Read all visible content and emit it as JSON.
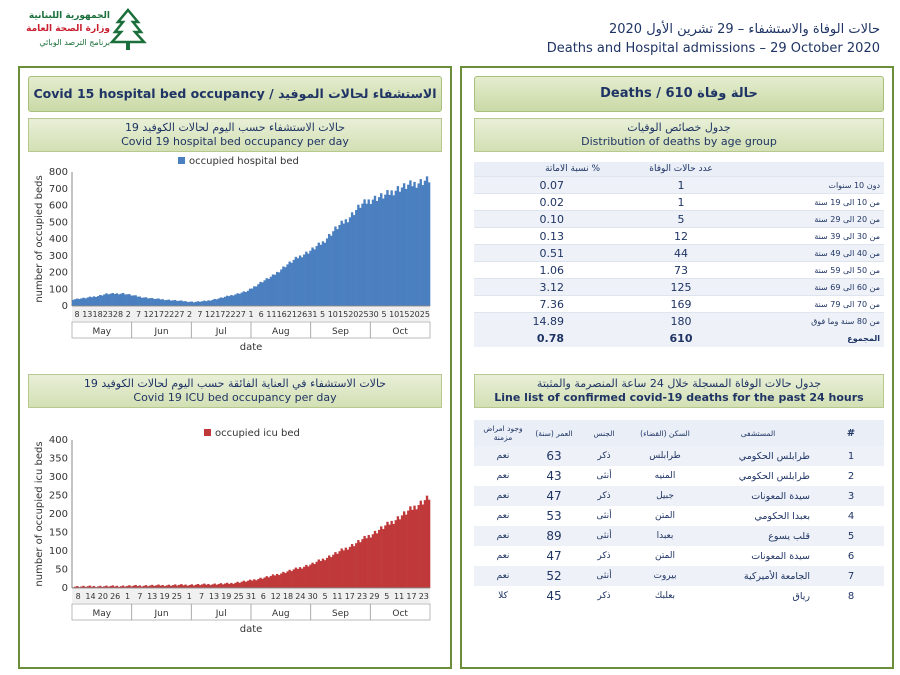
{
  "logo": {
    "line1": "الجمهورية اللبنانية",
    "line2": "وزارة الصحة العامة",
    "line3": "برنامج الترصد الوبائي"
  },
  "header": {
    "title_ar": "حالات الوفاة والاستشفاء – 29 تشرين الأول 2020",
    "title_en": "Deaths and Hospital admissions – 29 October 2020"
  },
  "left": {
    "banner": "Covid 15 hospital bed occupancy / الاستشفاء لحالات الموفيد 19",
    "hosp_sub_ar": "حالات الاستشفاء حسب اليوم لحالات الكوفيد 19",
    "hosp_sub_en": "Covid 19 hospital bed occupancy per day",
    "icu_sub_ar": "حالات الاستشفاء في العناية الفائقة حسب اليوم لحالات الكوفيد 19",
    "icu_sub_en": "Covid 19 ICU bed occupancy per day"
  },
  "right": {
    "banner": "Deaths  /  610 حالة وفاة",
    "dist_sub_ar": "جدول خصائص الوفيات",
    "dist_sub_en": "Distribution of deaths by age group",
    "dist_headers": {
      "pct": "نسبة الاماتة %",
      "deaths": "عدد حالات الوفاة"
    },
    "age_rows": [
      {
        "age": "دون 10 سنوات",
        "deaths": "1",
        "pct": "0.07"
      },
      {
        "age": "من 10 الى 19 سنة",
        "deaths": "1",
        "pct": "0.02"
      },
      {
        "age": "من 20 الى 29 سنة",
        "deaths": "5",
        "pct": "0.10"
      },
      {
        "age": "من 30 الى 39 سنة",
        "deaths": "12",
        "pct": "0.13"
      },
      {
        "age": "من 40 الى 49 سنة",
        "deaths": "44",
        "pct": "0.51"
      },
      {
        "age": "من 50 الى 59 سنة",
        "deaths": "73",
        "pct": "1.06"
      },
      {
        "age": "من 60 الى 69 سنة",
        "deaths": "125",
        "pct": "3.12"
      },
      {
        "age": "من 70 الى 79 سنة",
        "deaths": "169",
        "pct": "7.36"
      },
      {
        "age": "من 80 سنة وما فوق",
        "deaths": "180",
        "pct": "14.89"
      }
    ],
    "total": {
      "label": "المجموع",
      "deaths": "610",
      "pct": "0.78"
    },
    "line_sub_ar": "جدول حالات الوفاة المسجلة خلال 24 ساعة المنصرمة والمثبتة",
    "line_sub_en": "Line list of confirmed covid-19 deaths for the past 24 hours",
    "line_headers": {
      "num": "#",
      "hospital": "المستشفى",
      "residence": "السكن (القضاء)",
      "sex": "الجنس",
      "age": "العمر (سنة)",
      "chronic": "وجود امراض مزمنة"
    },
    "line_rows": [
      {
        "num": "1",
        "hospital": "طرابلس الحكومي",
        "residence": "طرابلس",
        "sex": "ذكر",
        "age": "63",
        "chronic": "نعم"
      },
      {
        "num": "2",
        "hospital": "طرابلس الحكومي",
        "residence": "المنيه",
        "sex": "أنثى",
        "age": "43",
        "chronic": "نعم"
      },
      {
        "num": "3",
        "hospital": "سيدة المعونات",
        "residence": "جبيل",
        "sex": "ذكر",
        "age": "47",
        "chronic": "نعم"
      },
      {
        "num": "4",
        "hospital": "بعبدا الحكومي",
        "residence": "المتن",
        "sex": "أنثى",
        "age": "53",
        "chronic": "نعم"
      },
      {
        "num": "5",
        "hospital": "قلب يسوع",
        "residence": "بعبدا",
        "sex": "أنثى",
        "age": "89",
        "chronic": "نعم"
      },
      {
        "num": "6",
        "hospital": "سيدة المعونات",
        "residence": "المتن",
        "sex": "ذكر",
        "age": "47",
        "chronic": "نعم"
      },
      {
        "num": "7",
        "hospital": "الجامعة الأميركية",
        "residence": "بيروت",
        "sex": "أنثى",
        "age": "52",
        "chronic": "نعم"
      },
      {
        "num": "8",
        "hospital": "رياق",
        "residence": "بعلبك",
        "sex": "ذكر",
        "age": "45",
        "chronic": "كلا"
      }
    ]
  },
  "chart_data": [
    {
      "type": "bar",
      "legend": "occupied hospital bed",
      "ylabel": "number of occupied beds",
      "xlabel": "date",
      "ylim": [
        0,
        800
      ],
      "yticks": [
        0,
        100,
        200,
        300,
        400,
        500,
        600,
        700,
        800
      ],
      "color": "#4a7fc0",
      "day_ticks": [
        "8",
        "13",
        "18",
        "23",
        "28",
        "2",
        "7",
        "12",
        "17",
        "22",
        "27",
        "2",
        "7",
        "12",
        "17",
        "22",
        "27",
        "1",
        "6",
        "11",
        "16",
        "21",
        "26",
        "31",
        "5",
        "10",
        "15",
        "20",
        "25",
        "30",
        "5",
        "10",
        "15",
        "20",
        "25"
      ],
      "months": [
        "May",
        "Jun",
        "Jul",
        "Aug",
        "Sep",
        "Oct"
      ],
      "start": "2020-05-08",
      "keyframes": [
        [
          0,
          40
        ],
        [
          6,
          48
        ],
        [
          12,
          60
        ],
        [
          16,
          72
        ],
        [
          24,
          75
        ],
        [
          28,
          65
        ],
        [
          32,
          55
        ],
        [
          38,
          45
        ],
        [
          46,
          36
        ],
        [
          52,
          30
        ],
        [
          58,
          24
        ],
        [
          64,
          30
        ],
        [
          70,
          45
        ],
        [
          78,
          70
        ],
        [
          84,
          90
        ],
        [
          90,
          140
        ],
        [
          96,
          180
        ],
        [
          102,
          240
        ],
        [
          108,
          290
        ],
        [
          114,
          330
        ],
        [
          120,
          380
        ],
        [
          126,
          460
        ],
        [
          132,
          520
        ],
        [
          138,
          600
        ],
        [
          144,
          640
        ],
        [
          150,
          660
        ],
        [
          156,
          700
        ],
        [
          164,
          730
        ],
        [
          171,
          755
        ]
      ]
    },
    {
      "type": "bar",
      "legend": "occupied icu bed",
      "ylabel": "number of occupied icu beds",
      "xlabel": "date",
      "ylim": [
        0,
        400
      ],
      "yticks": [
        0,
        50,
        100,
        150,
        200,
        250,
        300,
        350,
        400
      ],
      "color": "#c0393a",
      "day_ticks": [
        "8",
        "14",
        "20",
        "26",
        "1",
        "7",
        "13",
        "19",
        "25",
        "1",
        "7",
        "13",
        "19",
        "25",
        "31",
        "6",
        "12",
        "18",
        "24",
        "30",
        "5",
        "11",
        "17",
        "23",
        "29",
        "5",
        "11",
        "17",
        "23"
      ],
      "months": [
        "May",
        "Jun",
        "Jul",
        "Aug",
        "Sep",
        "Oct"
      ],
      "start": "2020-05-08",
      "keyframes": [
        [
          0,
          4
        ],
        [
          20,
          5
        ],
        [
          40,
          7
        ],
        [
          60,
          9
        ],
        [
          75,
          12
        ],
        [
          85,
          20
        ],
        [
          95,
          32
        ],
        [
          105,
          48
        ],
        [
          115,
          65
        ],
        [
          125,
          90
        ],
        [
          135,
          118
        ],
        [
          145,
          150
        ],
        [
          155,
          185
        ],
        [
          163,
          215
        ],
        [
          171,
          245
        ]
      ]
    }
  ]
}
